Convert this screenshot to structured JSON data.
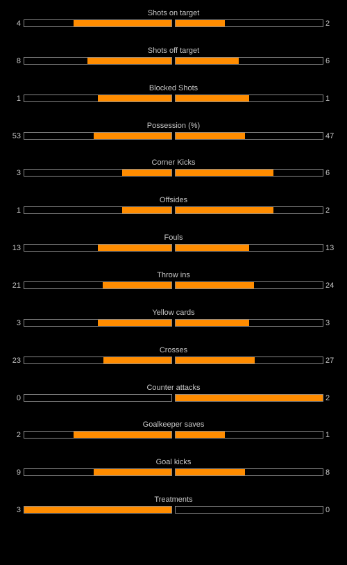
{
  "colors": {
    "background": "#000000",
    "bar_fill": "#ff8c00",
    "bar_border": "#8a8a8a",
    "text": "#c8c8c8"
  },
  "stats": [
    {
      "label": "Shots on target",
      "home": "4",
      "away": "2",
      "home_fraction": 0.667,
      "away_fraction": 0.333
    },
    {
      "label": "Shots off target",
      "home": "8",
      "away": "6",
      "home_fraction": 0.571,
      "away_fraction": 0.429
    },
    {
      "label": "Blocked Shots",
      "home": "1",
      "away": "1",
      "home_fraction": 0.5,
      "away_fraction": 0.5
    },
    {
      "label": "Possession (%)",
      "home": "53",
      "away": "47",
      "home_fraction": 0.53,
      "away_fraction": 0.47
    },
    {
      "label": "Corner Kicks",
      "home": "3",
      "away": "6",
      "home_fraction": 0.333,
      "away_fraction": 0.667
    },
    {
      "label": "Offsides",
      "home": "1",
      "away": "2",
      "home_fraction": 0.333,
      "away_fraction": 0.667
    },
    {
      "label": "Fouls",
      "home": "13",
      "away": "13",
      "home_fraction": 0.5,
      "away_fraction": 0.5
    },
    {
      "label": "Throw ins",
      "home": "21",
      "away": "24",
      "home_fraction": 0.467,
      "away_fraction": 0.533
    },
    {
      "label": "Yellow cards",
      "home": "3",
      "away": "3",
      "home_fraction": 0.5,
      "away_fraction": 0.5
    },
    {
      "label": "Crosses",
      "home": "23",
      "away": "27",
      "home_fraction": 0.46,
      "away_fraction": 0.54
    },
    {
      "label": "Counter attacks",
      "home": "0",
      "away": "2",
      "home_fraction": 0.0,
      "away_fraction": 1.0
    },
    {
      "label": "Goalkeeper saves",
      "home": "2",
      "away": "1",
      "home_fraction": 0.667,
      "away_fraction": 0.333
    },
    {
      "label": "Goal kicks",
      "home": "9",
      "away": "8",
      "home_fraction": 0.529,
      "away_fraction": 0.471
    },
    {
      "label": "Treatments",
      "home": "3",
      "away": "0",
      "home_fraction": 1.0,
      "away_fraction": 0.0
    }
  ]
}
